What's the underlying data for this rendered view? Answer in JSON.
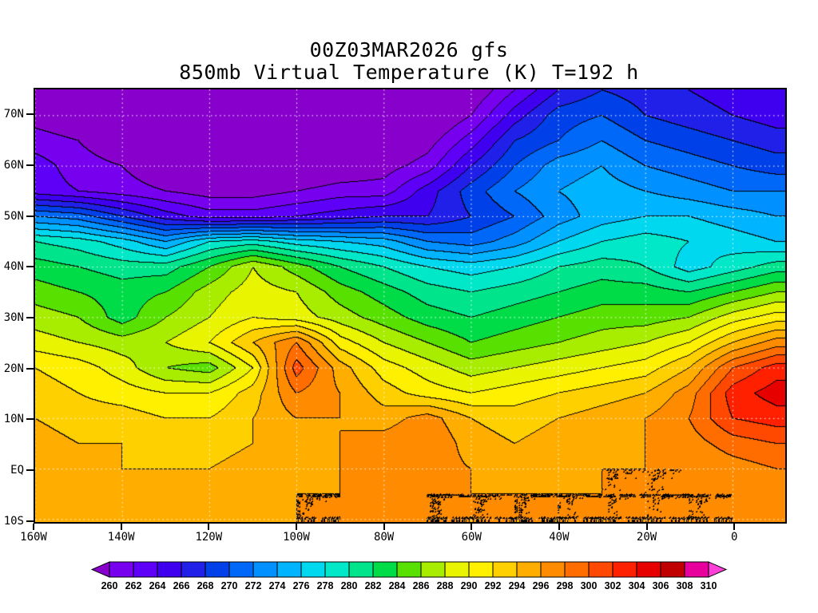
{
  "title": {
    "line1": "00Z03MAR2026 gfs",
    "line2": "850mb Virtual Temperature (K) T=192 h"
  },
  "chart_data": {
    "type": "heatmap",
    "variable": "850mb Virtual Temperature",
    "units": "K",
    "model": "gfs",
    "init_time": "00Z03MAR2026",
    "forecast_hour": 192,
    "contour_interval": 2,
    "levels": [
      260,
      262,
      264,
      266,
      268,
      270,
      272,
      274,
      276,
      278,
      280,
      282,
      284,
      286,
      288,
      290,
      292,
      294,
      296,
      298,
      300,
      302,
      304,
      306,
      308,
      310
    ],
    "palette": [
      "#8800cc",
      "#7700ee",
      "#5e00f8",
      "#4000f0",
      "#2020e8",
      "#0040e8",
      "#0068f8",
      "#0090ff",
      "#00b4ff",
      "#00d8f0",
      "#00e8c8",
      "#00e48c",
      "#00dc48",
      "#58e000",
      "#a8ec00",
      "#e8f400",
      "#fff000",
      "#ffd000",
      "#ffae00",
      "#ff8c00",
      "#ff6c00",
      "#ff4800",
      "#ff2000",
      "#e60000",
      "#c00000",
      "#e8009c",
      "#ff40d8"
    ],
    "extent": {
      "lon_min": -160,
      "lon_max": 12,
      "lat_min": -10.5,
      "lat_max": 75.2
    },
    "lats": [
      75,
      70,
      65,
      60,
      55,
      50,
      45,
      40,
      35,
      30,
      25,
      20,
      15,
      10,
      5,
      0,
      -5,
      -10
    ],
    "lons": [
      -160,
      -150,
      -140,
      -130,
      -120,
      -110,
      -100,
      -90,
      -80,
      -70,
      -60,
      -50,
      -40,
      -30,
      -20,
      -10,
      0,
      10
    ],
    "values": [
      [
        258,
        257,
        256,
        255,
        255,
        254,
        254,
        255,
        255,
        256,
        258,
        262,
        266,
        268,
        267,
        266,
        265,
        264
      ],
      [
        259,
        258,
        257,
        256,
        255,
        255,
        255,
        255,
        256,
        257,
        260,
        265,
        269,
        270,
        268,
        267,
        266,
        265
      ],
      [
        261,
        260,
        258,
        257,
        256,
        256,
        256,
        256,
        257,
        259,
        263,
        268,
        270,
        272,
        270,
        269,
        268,
        267
      ],
      [
        263,
        261,
        260,
        258,
        257,
        257,
        257,
        258,
        259,
        261,
        266,
        270,
        273,
        274,
        272,
        271,
        270,
        269
      ],
      [
        263,
        262,
        261,
        260,
        259,
        259,
        260,
        261,
        261,
        265,
        269,
        272,
        274,
        275,
        274,
        273,
        272,
        272
      ],
      [
        272,
        271,
        268,
        265,
        263,
        263,
        264,
        265,
        266,
        266,
        268,
        270,
        273,
        275,
        276,
        276,
        275,
        274
      ],
      [
        280,
        279,
        277,
        274,
        278,
        279,
        277,
        276,
        275,
        272,
        271,
        273,
        276,
        278,
        279,
        278,
        277,
        276
      ],
      [
        283,
        282,
        281,
        281,
        284,
        288,
        285,
        282,
        280,
        278,
        277,
        278,
        280,
        281,
        280,
        277,
        279,
        281
      ],
      [
        285,
        284,
        283,
        284,
        287,
        289,
        288,
        285,
        283,
        281,
        280,
        281,
        282,
        283,
        283,
        282,
        284,
        286
      ],
      [
        287,
        286,
        283,
        286,
        288,
        290,
        289,
        287,
        285,
        283,
        282,
        283,
        284,
        285,
        285,
        286,
        289,
        291
      ],
      [
        289,
        288,
        287,
        288,
        290,
        294,
        298,
        291,
        288,
        286,
        284,
        285,
        286,
        287,
        288,
        290,
        294,
        297
      ],
      [
        292,
        291,
        289,
        286,
        285,
        290,
        301,
        295,
        291,
        289,
        287,
        288,
        289,
        290,
        291,
        294,
        300,
        303
      ],
      [
        293,
        292,
        291,
        290,
        290,
        293,
        298,
        296,
        293,
        291,
        290,
        291,
        292,
        293,
        294,
        297,
        303,
        305
      ],
      [
        294,
        293,
        293,
        292,
        292,
        294,
        296,
        296,
        295,
        297,
        294,
        293,
        294,
        295,
        296,
        298,
        302,
        303
      ],
      [
        295,
        294,
        294,
        293,
        293,
        294,
        295,
        296,
        297,
        298,
        295,
        294,
        295,
        295,
        296,
        297,
        299,
        300
      ],
      [
        295,
        295,
        294,
        294,
        294,
        295,
        295,
        296,
        297,
        297,
        296,
        295,
        295,
        296,
        296,
        296,
        297,
        298
      ],
      [
        296,
        295,
        295,
        295,
        295,
        295,
        296,
        296,
        297,
        296,
        296,
        296,
        296,
        296,
        296,
        296,
        296,
        297
      ],
      [
        296,
        296,
        295,
        295,
        295,
        296,
        296,
        296,
        297,
        296,
        296,
        296,
        296,
        296,
        296,
        296,
        296,
        296
      ]
    ],
    "axes": {
      "lat_ticks": [
        {
          "label": "70N",
          "value": 70
        },
        {
          "label": "60N",
          "value": 60
        },
        {
          "label": "50N",
          "value": 50
        },
        {
          "label": "40N",
          "value": 40
        },
        {
          "label": "30N",
          "value": 30
        },
        {
          "label": "20N",
          "value": 20
        },
        {
          "label": "10N",
          "value": 10
        },
        {
          "label": "EQ",
          "value": 0
        },
        {
          "label": "10S",
          "value": -10
        }
      ],
      "lon_ticks": [
        {
          "label": "160W",
          "value": -160
        },
        {
          "label": "140W",
          "value": -140
        },
        {
          "label": "120W",
          "value": -120
        },
        {
          "label": "100W",
          "value": -100
        },
        {
          "label": "80W",
          "value": -80
        },
        {
          "label": "60W",
          "value": -60
        },
        {
          "label": "40W",
          "value": -40
        },
        {
          "label": "20W",
          "value": -20
        },
        {
          "label": "0",
          "value": 0
        }
      ]
    },
    "grid_style": "white-dotted",
    "legend_position": "bottom"
  }
}
